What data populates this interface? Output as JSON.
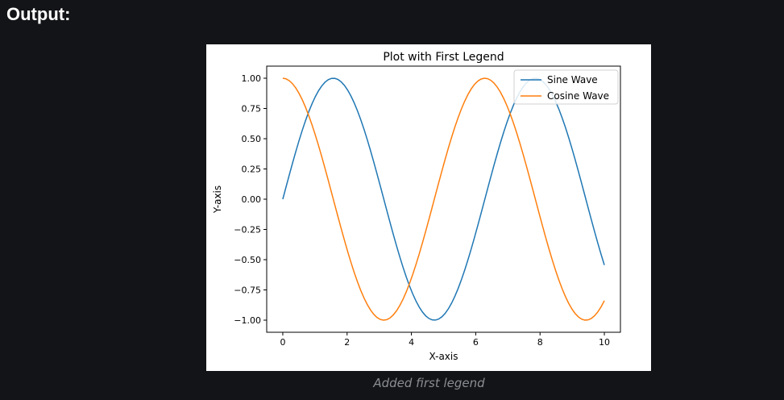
{
  "page": {
    "heading": "Output:",
    "caption": "Added first legend"
  },
  "chart_data": {
    "type": "line",
    "title": "Plot with First Legend",
    "xlabel": "X-axis",
    "ylabel": "Y-axis",
    "xlim": [
      -0.5,
      10.5
    ],
    "ylim": [
      -1.1,
      1.1
    ],
    "x_ticks": [
      0,
      2,
      4,
      6,
      8,
      10
    ],
    "x_tick_labels": [
      "0",
      "2",
      "4",
      "6",
      "8",
      "10"
    ],
    "y_ticks": [
      1.0,
      0.75,
      0.5,
      0.25,
      0.0,
      -0.25,
      -0.5,
      -0.75,
      -1.0
    ],
    "y_tick_labels": [
      "1.00",
      "0.75",
      "0.50",
      "0.25",
      "0.00",
      "−0.25",
      "−0.50",
      "−0.75",
      "−1.00"
    ],
    "grid": false,
    "legend_position": "upper-right",
    "x_range": [
      0,
      10
    ],
    "sample_count": 100,
    "series": [
      {
        "name": "Sine Wave",
        "function": "sin(x)",
        "color": "#1f77b4"
      },
      {
        "name": "Cosine Wave",
        "function": "cos(x)",
        "color": "#ff7f0e"
      }
    ]
  }
}
